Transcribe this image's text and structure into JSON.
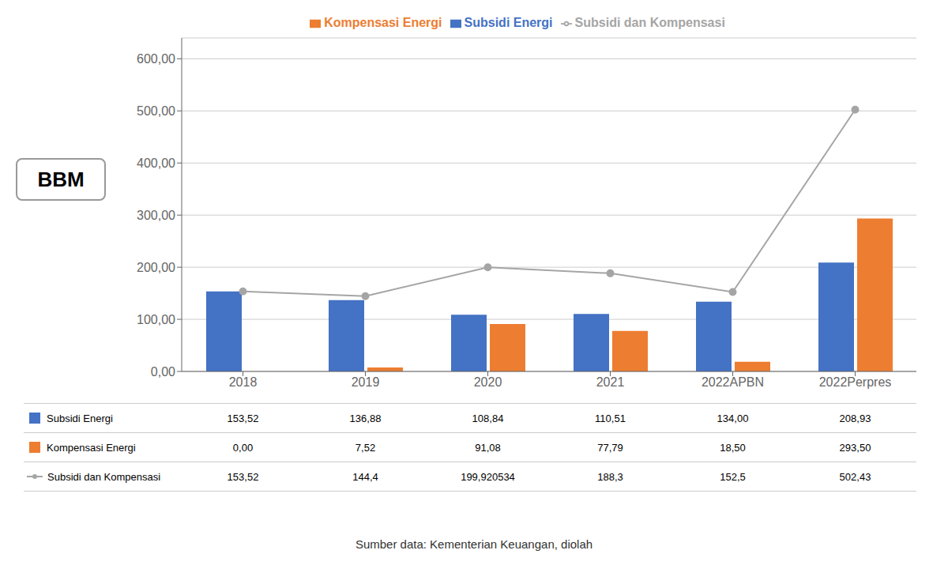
{
  "chart_data": {
    "type": "bar",
    "categories": [
      "2018",
      "2019",
      "2020",
      "2021",
      "2022APBN",
      "2022Perpres"
    ],
    "series": [
      {
        "name": "Subsidi Energi",
        "type": "bar",
        "color": "#4472C4",
        "values": [
          153.52,
          136.88,
          108.84,
          110.51,
          134.0,
          208.93
        ],
        "value_labels": [
          "153,52",
          "136,88",
          "108,84",
          "110,51",
          "134,00",
          "208,93"
        ]
      },
      {
        "name": "Kompensasi Energi",
        "type": "bar",
        "color": "#ED7D31",
        "values": [
          0.0,
          7.52,
          91.08,
          77.79,
          18.5,
          293.5
        ],
        "value_labels": [
          "0,00",
          "7,52",
          "91,08",
          "77,79",
          "18,50",
          "293,50"
        ]
      },
      {
        "name": "Subsidi dan Kompensasi",
        "type": "line",
        "color": "#A5A5A5",
        "marker": "circle",
        "values": [
          153.52,
          144.4,
          199.920534,
          188.3,
          152.5,
          502.43
        ],
        "value_labels": [
          "153,52",
          "144,4",
          "199,920534",
          "188,3",
          "152,5",
          "502,43"
        ]
      }
    ],
    "ylim": [
      0,
      640
    ],
    "yticks": [
      {
        "value": 0,
        "label": "0,00"
      },
      {
        "value": 100,
        "label": "100,00"
      },
      {
        "value": 200,
        "label": "200,00"
      },
      {
        "value": 300,
        "label": "300,00"
      },
      {
        "value": 400,
        "label": "400,00"
      },
      {
        "value": 500,
        "label": "500,00"
      },
      {
        "value": 600,
        "label": "600,00"
      }
    ],
    "grid": true,
    "legend": "top",
    "annotations": [
      "BBM"
    ],
    "source": "Sumber data: Kementerian Keuangan, diolah"
  }
}
